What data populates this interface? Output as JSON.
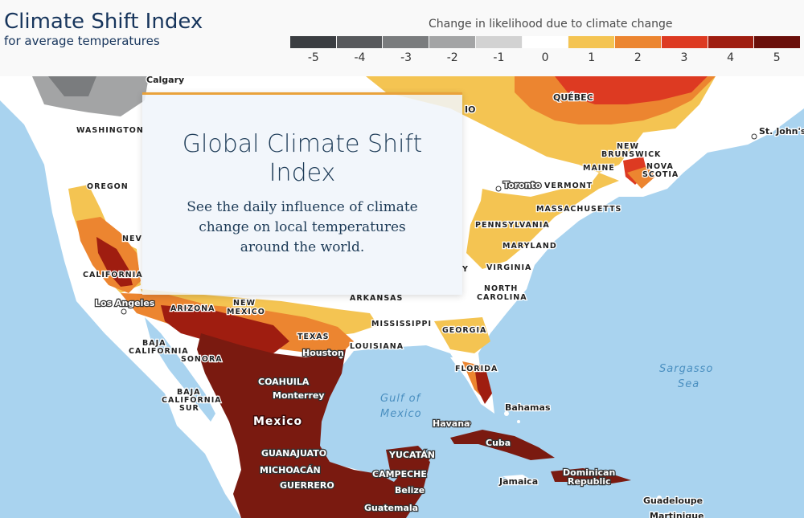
{
  "header": {
    "title": "Climate Shift Index",
    "subtitle": "for average temperatures"
  },
  "legend": {
    "title": "Change in likelihood due to climate change",
    "items": [
      {
        "label": "-5",
        "color": "#3b3e42"
      },
      {
        "label": "-4",
        "color": "#57595c"
      },
      {
        "label": "-3",
        "color": "#7a7c7e"
      },
      {
        "label": "-2",
        "color": "#a3a4a5"
      },
      {
        "label": "-1",
        "color": "#d2d2d2"
      },
      {
        "label": "0",
        "color": "#ffffff"
      },
      {
        "label": "1",
        "color": "#f4c452"
      },
      {
        "label": "2",
        "color": "#ec8530"
      },
      {
        "label": "3",
        "color": "#dd3a22"
      },
      {
        "label": "4",
        "color": "#9f1d10"
      },
      {
        "label": "5",
        "color": "#6a0f0a"
      }
    ]
  },
  "overlay": {
    "title": "Global Climate Shift Index",
    "body": "See the daily influence of climate change on local temperatures around the world."
  },
  "map": {
    "colors": {
      "ocean": "#a9d3ef",
      "land": "#ffffff"
    },
    "labels": {
      "calgary": "Calgary",
      "washington": "WASHINGTON",
      "oregon": "OREGON",
      "nevada": "NEV",
      "california": "CALIFORNIA",
      "los_angeles": "Los Angeles",
      "arizona": "ARIZONA",
      "new_mexico_1": "NEW",
      "new_mexico_2": "MEXICO",
      "texas": "TEXAS",
      "houston": "Houston",
      "arkansas": "ARKANSAS",
      "mississippi": "MISSISSIPPI",
      "louisiana": "LOUISIANA",
      "georgia": "GEORGIA",
      "florida": "FLORIDA",
      "north_carolina_1": "NORTH",
      "north_carolina_2": "CAROLINA",
      "virginia": "VIRGINIA",
      "virginia_partial": "Y",
      "maryland": "MARYLAND",
      "pennsylvania": "PENNSYLVANIA",
      "massachusetts": "MASSACHUSETTS",
      "toronto": "Toronto",
      "vermont": "VERMONT",
      "maine": "MAINE",
      "new_brunswick_1": "NEW",
      "new_brunswick_2": "BRUNSWICK",
      "nova_scotia_1": "NOVA",
      "nova_scotia_2": "SCOTIA",
      "quebec": "QUÉBEC",
      "ohio_partial": "IO",
      "st_johns": "St. John's",
      "baja_california_1": "BAJA",
      "baja_california_2": "CALIFORNIA",
      "sonora": "SONORA",
      "baja_california_sur_1": "BAJA",
      "baja_california_sur_2": "CALIFORNIA",
      "baja_california_sur_3": "SUR",
      "coahuila": "COAHUILA",
      "monterrey": "Monterrey",
      "mexico": "Mexico",
      "guanajuato": "GUANAJUATO",
      "michoacan": "MICHOACÁN",
      "guerrero": "GUERRERO",
      "yucatan": "YUCATÁN",
      "campeche": "CAMPECHE",
      "belize": "Belize",
      "guatemala": "Guatemala",
      "havana": "Havana",
      "cuba": "Cuba",
      "bahamas": "Bahamas",
      "jamaica": "Jamaica",
      "dominican_republic_1": "Dominican",
      "dominican_republic_2": "Republic",
      "guadeloupe": "Guadeloupe",
      "martinique": "Martinique",
      "gulf_1": "Gulf of",
      "gulf_2": "Mexico",
      "sargasso_1": "Sargasso",
      "sargasso_2": "Sea"
    }
  }
}
